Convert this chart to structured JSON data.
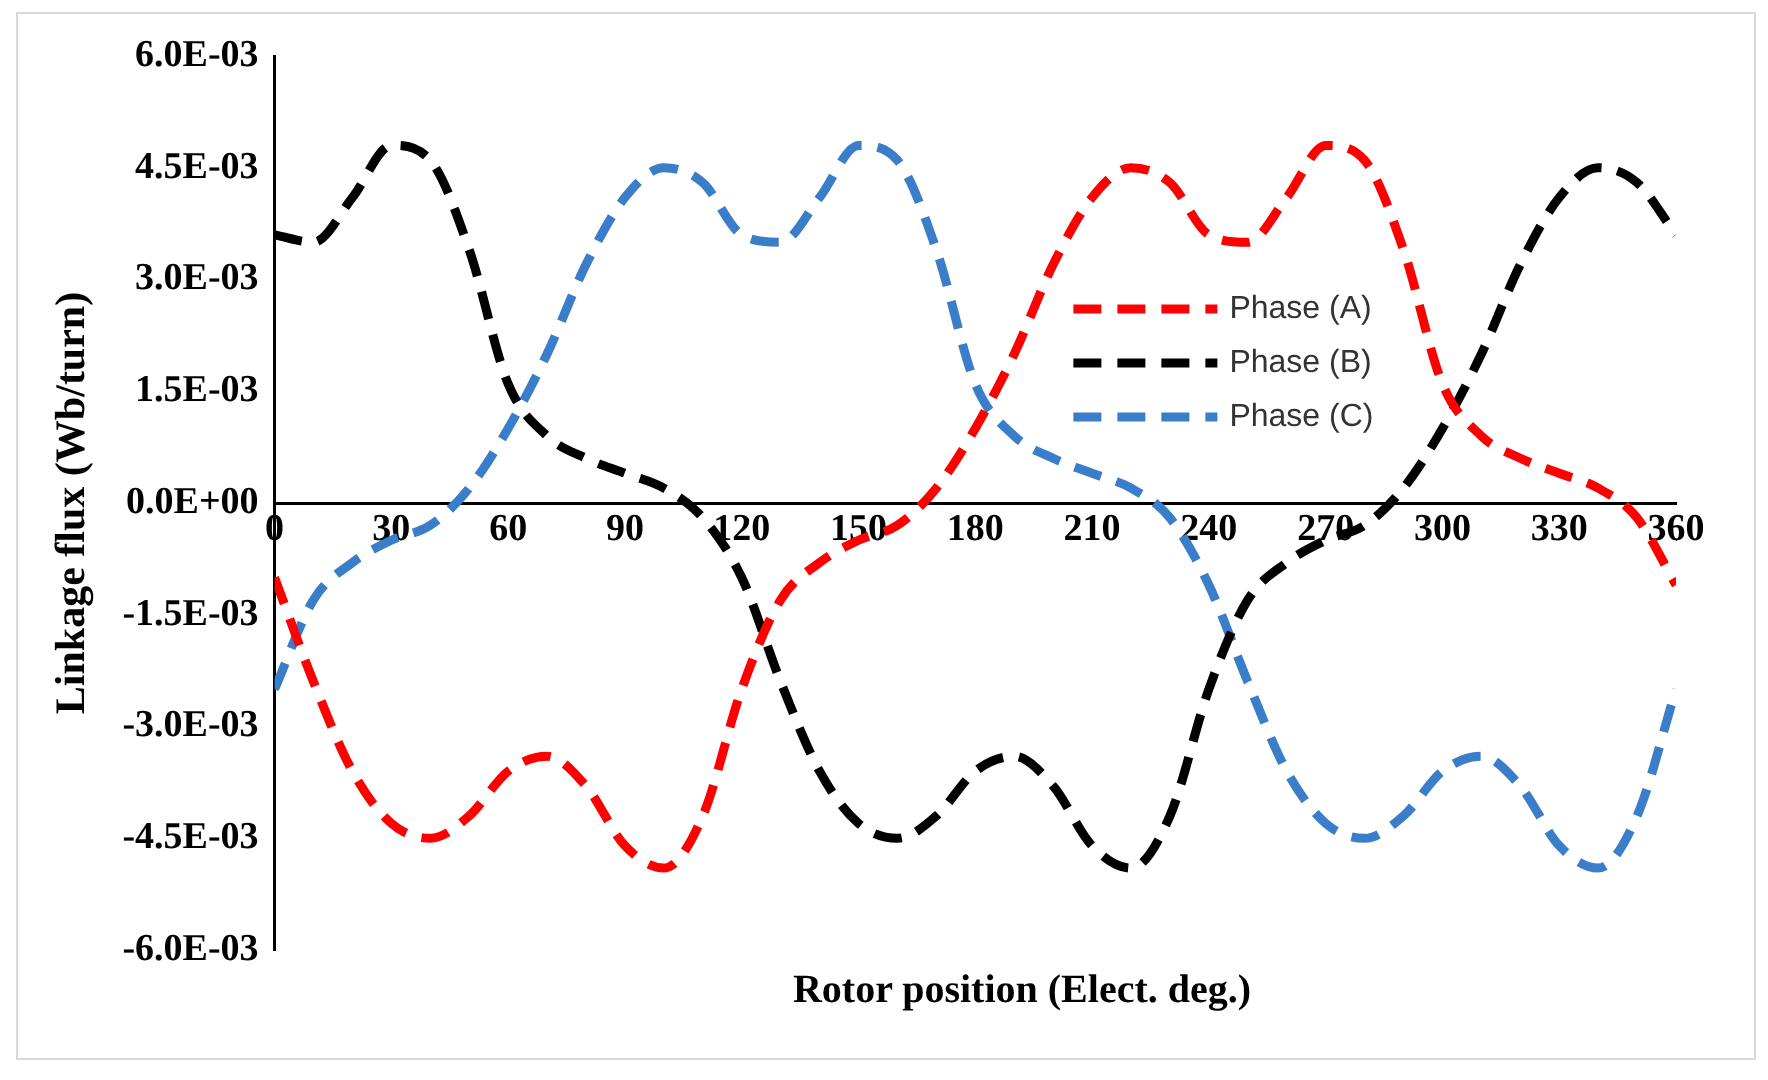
{
  "chart_data": {
    "type": "line",
    "xlabel": "Rotor position (Elect. deg.)",
    "ylabel": "Linkage flux (Wb/turn)",
    "x": [
      0,
      10,
      20,
      30,
      40,
      50,
      60,
      70,
      80,
      90,
      100,
      110,
      120,
      130,
      140,
      150,
      160,
      170,
      180,
      190,
      200,
      210,
      220,
      230,
      240,
      250,
      260,
      270,
      280,
      290,
      300,
      310,
      320,
      330,
      340,
      350,
      360
    ],
    "series": [
      {
        "name": "Phase (A)",
        "color": "#ff0000",
        "values": [
          -0.001,
          -0.0024,
          -0.0036,
          -0.0043,
          -0.0045,
          -0.0042,
          -0.0036,
          -0.0034,
          -0.0038,
          -0.0046,
          -0.0049,
          -0.0042,
          -0.0025,
          -0.0013,
          -0.0008,
          -0.0005,
          -0.0003,
          0.0002,
          0.001,
          0.002,
          0.0032,
          0.0041,
          0.0045,
          0.0043,
          0.0036,
          0.0035,
          0.0041,
          0.0048,
          0.0046,
          0.0034,
          0.0016,
          0.0009,
          0.0006,
          0.0004,
          0.0002,
          -0.0002,
          -0.0011
        ]
      },
      {
        "name": "Phase (B)",
        "color": "#000000",
        "values": [
          0.0036,
          0.0035,
          0.0041,
          0.0048,
          0.0046,
          0.0034,
          0.0016,
          0.0009,
          0.0006,
          0.0004,
          0.0002,
          -0.0002,
          -0.001,
          -0.0024,
          -0.0036,
          -0.0043,
          -0.0045,
          -0.0042,
          -0.0036,
          -0.0034,
          -0.0038,
          -0.0046,
          -0.0049,
          -0.0042,
          -0.0025,
          -0.0013,
          -0.0008,
          -0.0005,
          -0.0003,
          0.0002,
          0.001,
          0.002,
          0.0032,
          0.0041,
          0.0045,
          0.0043,
          0.0036
        ]
      },
      {
        "name": "Phase (C)",
        "color": "#3a7dc9",
        "values": [
          -0.0025,
          -0.0013,
          -0.0008,
          -0.0005,
          -0.0003,
          0.0002,
          0.001,
          0.002,
          0.0032,
          0.0041,
          0.0045,
          0.0043,
          0.0036,
          0.0035,
          0.0041,
          0.0048,
          0.0046,
          0.0034,
          0.0016,
          0.0009,
          0.0006,
          0.0004,
          0.0002,
          -0.0002,
          -0.0011,
          -0.0024,
          -0.0036,
          -0.0043,
          -0.0045,
          -0.0042,
          -0.0036,
          -0.0034,
          -0.0038,
          -0.0046,
          -0.0049,
          -0.0042,
          -0.0025
        ]
      }
    ],
    "xlim": [
      0,
      360
    ],
    "xticks": [
      0,
      30,
      60,
      90,
      120,
      150,
      180,
      210,
      240,
      270,
      300,
      330,
      360
    ],
    "ylim": [
      -0.006,
      0.006
    ],
    "yticks": [
      {
        "value": -0.006,
        "label": "-6.0E-03"
      },
      {
        "value": -0.0045,
        "label": "-4.5E-03"
      },
      {
        "value": -0.003,
        "label": "-3.0E-03"
      },
      {
        "value": -0.0015,
        "label": "-1.5E-03"
      },
      {
        "value": 0,
        "label": "0.0E+00"
      },
      {
        "value": 0.0015,
        "label": "1.5E-03"
      },
      {
        "value": 0.003,
        "label": "3.0E-03"
      },
      {
        "value": 0.0045,
        "label": "4.5E-03"
      },
      {
        "value": 0.006,
        "label": "6.0E-03"
      }
    ],
    "grid": false,
    "legend": "right",
    "marker": "none",
    "line_style": "dashed"
  }
}
